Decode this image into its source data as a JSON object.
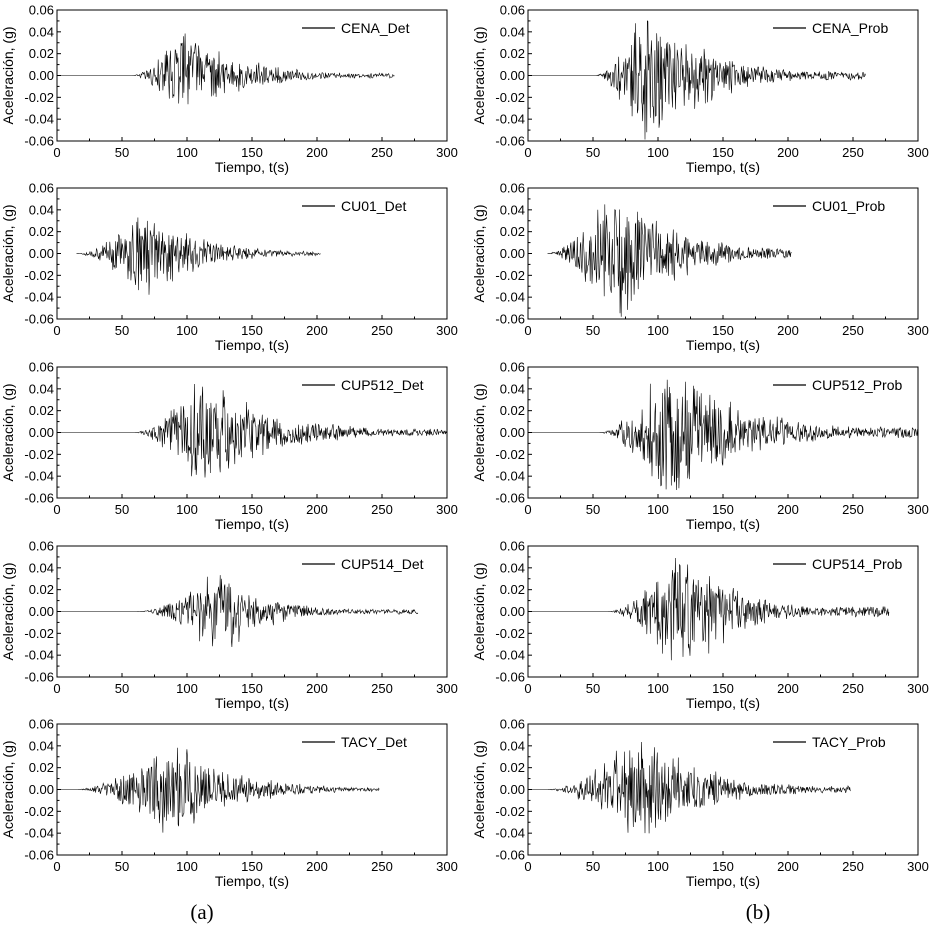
{
  "captions": {
    "left": "(a)",
    "right": "(b)"
  },
  "chart_data": [
    {
      "type": "line",
      "column": "a",
      "row": 0,
      "legend": "CENA_Det",
      "xlabel": "Tiempo, t(s)",
      "ylabel": "Aceleración, (g)",
      "xlim": [
        0,
        300
      ],
      "ylim": [
        -0.06,
        0.06
      ],
      "xticks": [
        "0",
        "50",
        "100",
        "150",
        "200",
        "250",
        "300"
      ],
      "yticks": [
        "0.06",
        "0.04",
        "0.02",
        "0.00",
        "-0.02",
        "-0.04",
        "-0.06"
      ],
      "legend_position": "top-right",
      "signal": {
        "start": 0,
        "end": 260,
        "peak_time": 98,
        "onset": 58,
        "rise": 28,
        "decay": 42,
        "amp_pos": 0.04,
        "amp_neg": -0.037,
        "coda": 0.0025,
        "seed": 11
      }
    },
    {
      "type": "line",
      "column": "b",
      "row": 0,
      "legend": "CENA_Prob",
      "xlabel": "Tiempo, t(s)",
      "ylabel": "Aceleración, (g)",
      "xlim": [
        0,
        300
      ],
      "ylim": [
        -0.06,
        0.06
      ],
      "xticks": [
        "0",
        "50",
        "100",
        "150",
        "200",
        "250",
        "300"
      ],
      "yticks": [
        "0.06",
        "0.04",
        "0.02",
        "0.00",
        "-0.02",
        "-0.04",
        "-0.06"
      ],
      "legend_position": "top-right",
      "signal": {
        "start": 0,
        "end": 260,
        "peak_time": 92,
        "onset": 52,
        "rise": 28,
        "decay": 45,
        "amp_pos": 0.056,
        "amp_neg": -0.06,
        "coda": 0.003,
        "seed": 23
      }
    },
    {
      "type": "line",
      "column": "a",
      "row": 1,
      "legend": "CU01_Det",
      "xlabel": "Tiempo, t(s)",
      "ylabel": "Aceleración, (g)",
      "xlim": [
        0,
        300
      ],
      "ylim": [
        -0.06,
        0.06
      ],
      "xticks": [
        "0",
        "50",
        "100",
        "150",
        "200",
        "250",
        "300"
      ],
      "yticks": [
        "0.06",
        "0.04",
        "0.02",
        "0.00",
        "-0.02",
        "-0.04",
        "-0.06"
      ],
      "legend_position": "top-right",
      "signal": {
        "start": 15,
        "end": 203,
        "peak_time": 67,
        "onset": 15,
        "rise": 35,
        "decay": 40,
        "amp_pos": 0.036,
        "amp_neg": -0.038,
        "coda": 0.003,
        "seed": 37
      }
    },
    {
      "type": "line",
      "column": "b",
      "row": 1,
      "legend": "CU01_Prob",
      "xlabel": "Tiempo, t(s)",
      "ylabel": "Aceleración, (g)",
      "xlim": [
        0,
        300
      ],
      "ylim": [
        -0.06,
        0.06
      ],
      "xticks": [
        "0",
        "50",
        "100",
        "150",
        "200",
        "250",
        "300"
      ],
      "yticks": [
        "0.06",
        "0.04",
        "0.02",
        "0.00",
        "-0.02",
        "-0.04",
        "-0.06"
      ],
      "legend_position": "top-right",
      "signal": {
        "start": 15,
        "end": 203,
        "peak_time": 67,
        "onset": 15,
        "rise": 35,
        "decay": 45,
        "amp_pos": 0.045,
        "amp_neg": -0.06,
        "coda": 0.004,
        "seed": 41
      }
    },
    {
      "type": "line",
      "column": "a",
      "row": 2,
      "legend": "CUP512_Det",
      "xlabel": "Tiempo, t(s)",
      "ylabel": "Aceleración, (g)",
      "xlim": [
        0,
        300
      ],
      "ylim": [
        -0.06,
        0.06
      ],
      "xticks": [
        "0",
        "50",
        "100",
        "150",
        "200",
        "250",
        "300"
      ],
      "yticks": [
        "0.06",
        "0.04",
        "0.02",
        "0.00",
        "-0.02",
        "-0.04",
        "-0.06"
      ],
      "legend_position": "top-right",
      "signal": {
        "start": 0,
        "end": 300,
        "peak_time": 110,
        "onset": 60,
        "rise": 25,
        "decay": 55,
        "amp_pos": 0.048,
        "amp_neg": -0.044,
        "coda": 0.003,
        "seed": 53
      }
    },
    {
      "type": "line",
      "column": "b",
      "row": 2,
      "legend": "CUP512_Prob",
      "xlabel": "Tiempo, t(s)",
      "ylabel": "Aceleración, (g)",
      "xlim": [
        0,
        300
      ],
      "ylim": [
        -0.06,
        0.06
      ],
      "xticks": [
        "0",
        "50",
        "100",
        "150",
        "200",
        "250",
        "300"
      ],
      "yticks": [
        "0.06",
        "0.04",
        "0.02",
        "0.00",
        "-0.02",
        "-0.04",
        "-0.06"
      ],
      "legend_position": "top-right",
      "signal": {
        "start": 0,
        "end": 300,
        "peak_time": 108,
        "onset": 55,
        "rise": 28,
        "decay": 55,
        "amp_pos": 0.06,
        "amp_neg": -0.053,
        "coda": 0.004,
        "seed": 67
      }
    },
    {
      "type": "line",
      "column": "a",
      "row": 3,
      "legend": "CUP514_Det",
      "xlabel": "Tiempo, t(s)",
      "ylabel": "Aceleración, (g)",
      "xlim": [
        0,
        300
      ],
      "ylim": [
        -0.06,
        0.06
      ],
      "xticks": [
        "0",
        "50",
        "100",
        "150",
        "200",
        "250",
        "300"
      ],
      "yticks": [
        "0.06",
        "0.04",
        "0.02",
        "0.00",
        "-0.02",
        "-0.04",
        "-0.06"
      ],
      "legend_position": "top-right",
      "signal": {
        "start": 0,
        "end": 278,
        "peak_time": 125,
        "onset": 62,
        "rise": 35,
        "decay": 35,
        "amp_pos": 0.035,
        "amp_neg": -0.036,
        "coda": 0.003,
        "seed": 71
      }
    },
    {
      "type": "line",
      "column": "b",
      "row": 3,
      "legend": "CUP514_Prob",
      "xlabel": "Tiempo, t(s)",
      "ylabel": "Aceleración, (g)",
      "xlim": [
        0,
        300
      ],
      "ylim": [
        -0.06,
        0.06
      ],
      "xticks": [
        "0",
        "50",
        "100",
        "150",
        "200",
        "250",
        "300"
      ],
      "yticks": [
        "0.06",
        "0.04",
        "0.02",
        "0.00",
        "-0.02",
        "-0.04",
        "-0.06"
      ],
      "legend_position": "top-right",
      "signal": {
        "start": 0,
        "end": 278,
        "peak_time": 118,
        "onset": 62,
        "rise": 35,
        "decay": 40,
        "amp_pos": 0.049,
        "amp_neg": -0.056,
        "coda": 0.004,
        "seed": 83
      }
    },
    {
      "type": "line",
      "column": "a",
      "row": 4,
      "legend": "TACY_Det",
      "xlabel": "Tiempo, t(s)",
      "ylabel": "Aceleración, (g)",
      "xlim": [
        0,
        300
      ],
      "ylim": [
        -0.06,
        0.06
      ],
      "xticks": [
        "0",
        "50",
        "100",
        "150",
        "200",
        "250",
        "300"
      ],
      "yticks": [
        "0.06",
        "0.04",
        "0.02",
        "0.00",
        "-0.02",
        "-0.04",
        "-0.06"
      ],
      "legend_position": "top-right",
      "signal": {
        "start": 0,
        "end": 248,
        "peak_time": 88,
        "onset": 15,
        "rise": 55,
        "decay": 45,
        "amp_pos": 0.042,
        "amp_neg": -0.04,
        "coda": 0.002,
        "seed": 97
      }
    },
    {
      "type": "line",
      "column": "b",
      "row": 4,
      "legend": "TACY_Prob",
      "xlabel": "Tiempo, t(s)",
      "ylabel": "Aceleración, (g)",
      "xlim": [
        0,
        300
      ],
      "ylim": [
        -0.06,
        0.06
      ],
      "xticks": [
        "0",
        "50",
        "100",
        "150",
        "200",
        "250",
        "300"
      ],
      "yticks": [
        "0.06",
        "0.04",
        "0.02",
        "0.00",
        "-0.02",
        "-0.04",
        "-0.06"
      ],
      "legend_position": "top-right",
      "signal": {
        "start": 0,
        "end": 248,
        "peak_time": 85,
        "onset": 15,
        "rise": 55,
        "decay": 50,
        "amp_pos": 0.048,
        "amp_neg": -0.042,
        "coda": 0.003,
        "seed": 101
      }
    }
  ]
}
